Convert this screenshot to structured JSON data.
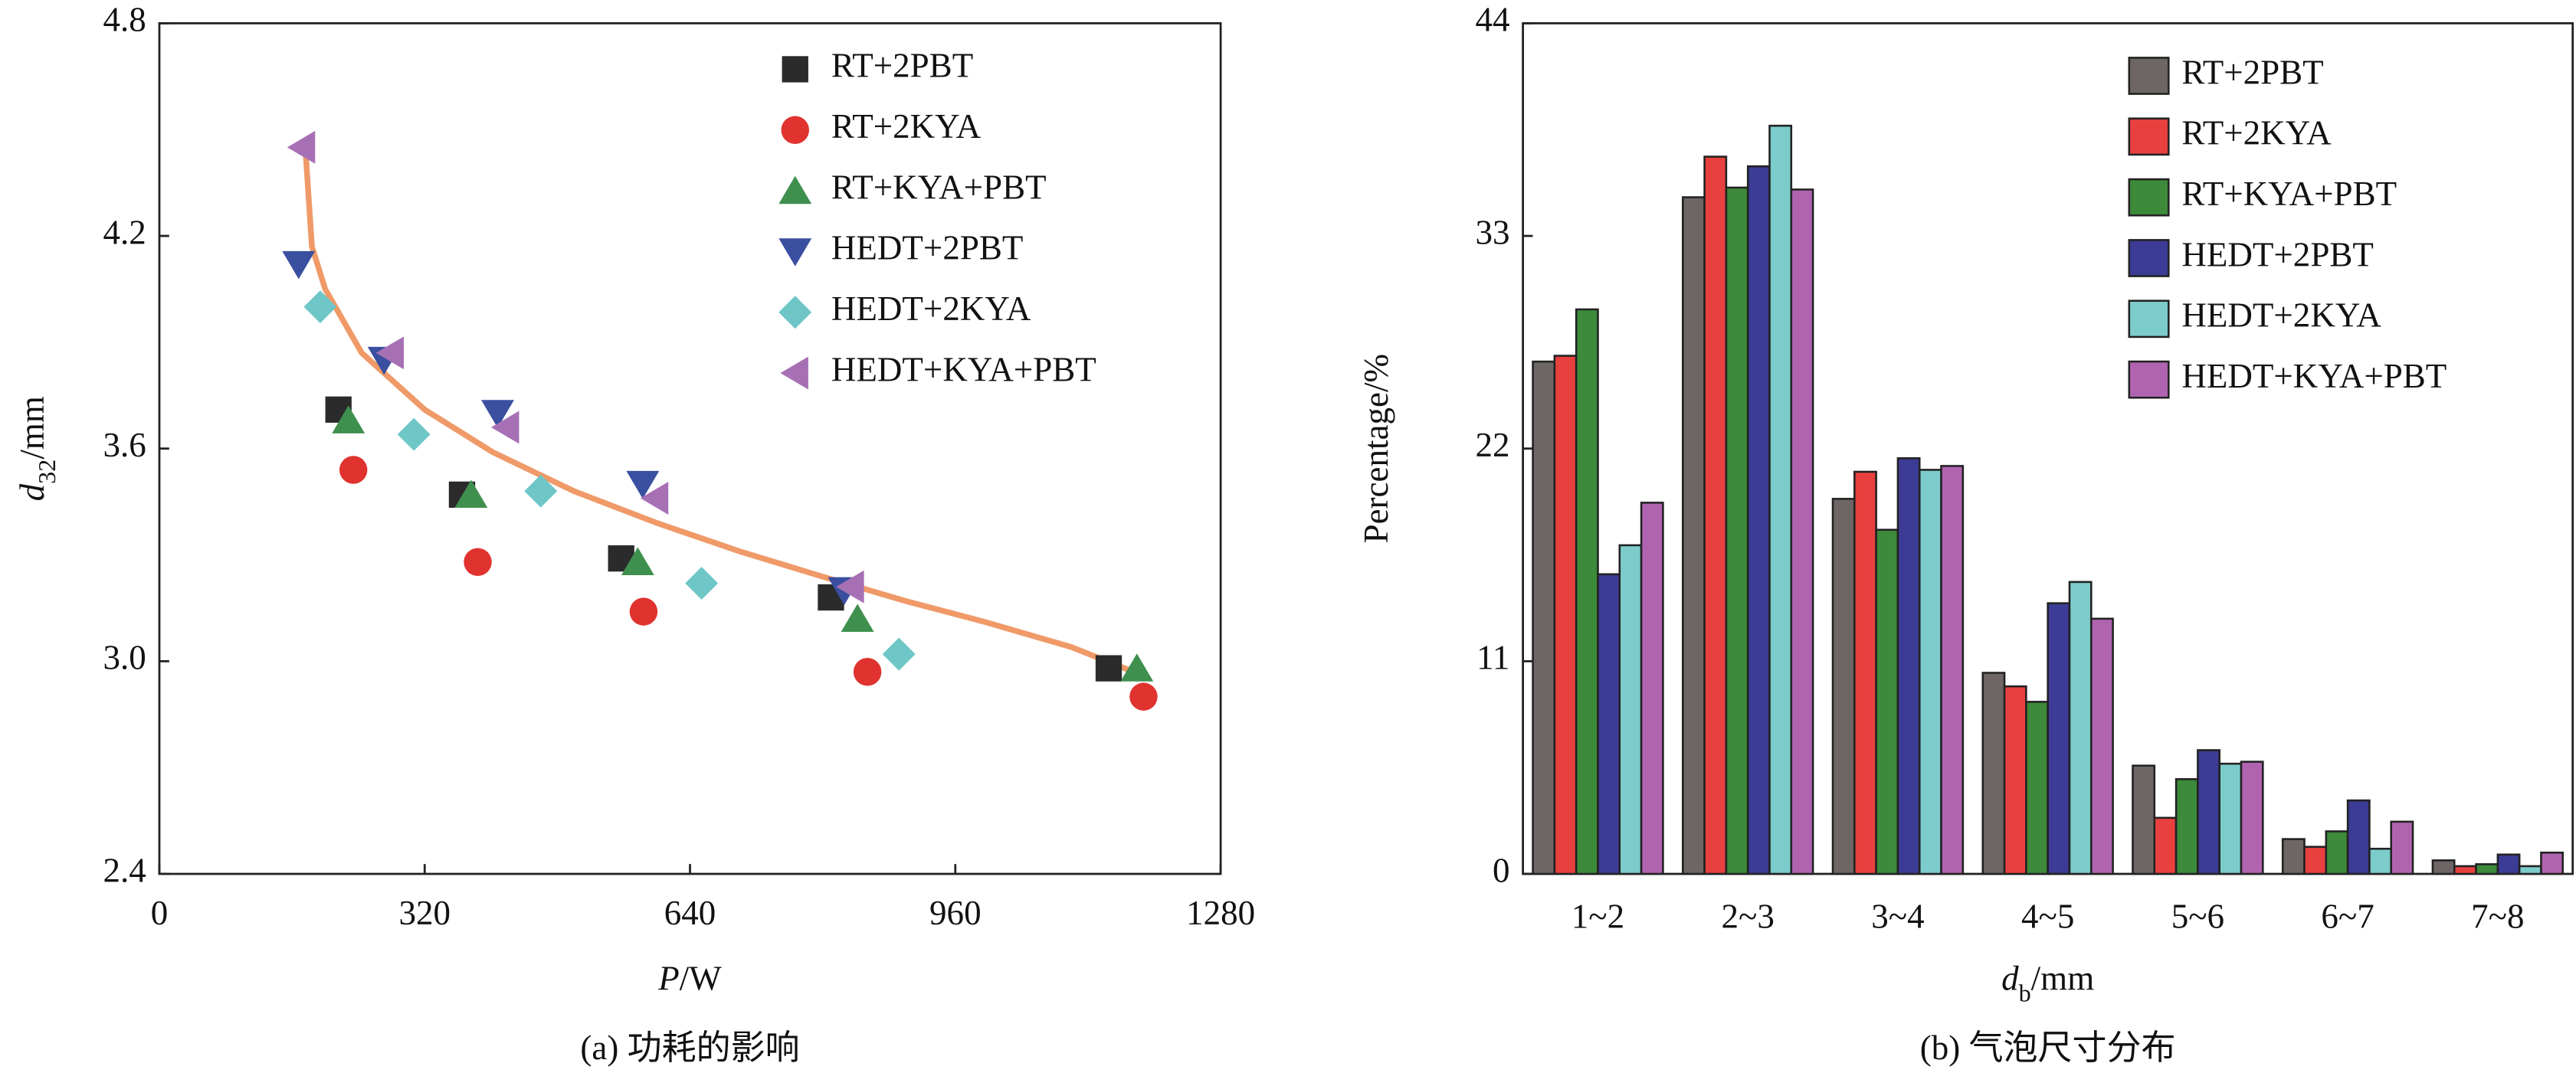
{
  "chart_data": [
    {
      "type": "scatter",
      "caption": "(a) 功耗的影响",
      "x_label": [
        {
          "text": "P",
          "style": "italic"
        },
        {
          "text": "/W"
        }
      ],
      "y_label": [
        {
          "text": "d",
          "style": "italic"
        },
        {
          "text": "32",
          "style": "sub"
        },
        {
          "text": "/mm"
        }
      ],
      "xlim": [
        0,
        1280
      ],
      "xticks": [
        0,
        320,
        640,
        960,
        1280
      ],
      "ylim": [
        2.4,
        4.8
      ],
      "yticks": [
        2.4,
        {
          "value": 3,
          "label": "3.0"
        },
        3.6,
        4.2,
        4.8
      ],
      "series": [
        {
          "name": "RT+2PBT",
          "color": "#2b2b2b",
          "marker": "square",
          "x": [
            216,
            365,
            557,
            810,
            1145
          ],
          "values": [
            3.71,
            3.47,
            3.29,
            3.18,
            2.98
          ]
        },
        {
          "name": "RT+2KYA",
          "color": "#e0332f",
          "marker": "circle",
          "x": [
            234,
            384,
            584,
            854,
            1187
          ],
          "values": [
            3.54,
            3.28,
            3.14,
            2.97,
            2.9
          ]
        },
        {
          "name": "RT+KYA+PBT",
          "color": "#3f8f4f",
          "marker": "triangle-up",
          "x": [
            228,
            376,
            577,
            842,
            1179
          ],
          "values": [
            3.68,
            3.47,
            3.28,
            3.12,
            2.98
          ]
        },
        {
          "name": "HEDT+2PBT",
          "color": "#3a4fa0",
          "marker": "triangle-down",
          "x": [
            168,
            271,
            408,
            583,
            826
          ],
          "values": [
            4.12,
            3.85,
            3.7,
            3.5,
            3.2
          ]
        },
        {
          "name": "HEDT+2KYA",
          "color": "#6ec6c6",
          "marker": "diamond",
          "x": [
            194,
            307,
            460,
            654,
            892
          ],
          "values": [
            4.0,
            3.64,
            3.48,
            3.22,
            3.02
          ]
        },
        {
          "name": "HEDT+KYA+PBT",
          "color": "#a770b5",
          "marker": "triangle-left",
          "x": [
            172,
            279,
            418,
            598,
            834
          ],
          "values": [
            4.45,
            3.87,
            3.66,
            3.46,
            3.21
          ]
        }
      ],
      "fit": {
        "color": "#ef9a68",
        "x": [
          176,
          184,
          200,
          244,
          320,
          402,
          500,
          600,
          700,
          798,
          900,
          997,
          1100,
          1175
        ],
        "y": [
          4.45,
          4.17,
          4.05,
          3.87,
          3.71,
          3.59,
          3.48,
          3.39,
          3.31,
          3.24,
          3.17,
          3.11,
          3.04,
          2.97
        ]
      }
    },
    {
      "type": "bar",
      "caption": "(b) 气泡尺寸分布",
      "x_label": [
        {
          "text": "d",
          "style": "italic"
        },
        {
          "text": "b",
          "style": "sub"
        },
        {
          "text": "/mm"
        }
      ],
      "y_label": [
        {
          "text": "Percentage/%"
        }
      ],
      "categories": [
        "1~2",
        "2~3",
        "3~4",
        "4~5",
        "5~6",
        "6~7",
        "7~8"
      ],
      "ylim": [
        0,
        44
      ],
      "yticks": [
        0,
        11,
        22,
        33,
        44
      ],
      "series": [
        {
          "name": "RT+2PBT",
          "color": "#6e6664",
          "values": [
            26.5,
            35.0,
            19.4,
            10.4,
            5.6,
            1.8,
            0.7
          ]
        },
        {
          "name": "RT+2KYA",
          "color": "#e8403f",
          "values": [
            26.8,
            37.1,
            20.8,
            9.7,
            2.9,
            1.4,
            0.4
          ]
        },
        {
          "name": "RT+KYA+PBT",
          "color": "#3d8a3a",
          "values": [
            29.2,
            35.5,
            17.8,
            8.9,
            4.9,
            2.2,
            0.5
          ]
        },
        {
          "name": "HEDT+2PBT",
          "color": "#3c3c96",
          "values": [
            15.5,
            36.6,
            21.5,
            14.0,
            6.4,
            3.8,
            1.0
          ]
        },
        {
          "name": "HEDT+2KYA",
          "color": "#7ccccc",
          "values": [
            17.0,
            38.7,
            20.9,
            15.1,
            5.7,
            1.3,
            0.4
          ]
        },
        {
          "name": "HEDT+KYA+PBT",
          "color": "#b064b0",
          "values": [
            19.2,
            35.4,
            21.1,
            13.2,
            5.8,
            2.7,
            1.1
          ]
        }
      ]
    }
  ]
}
